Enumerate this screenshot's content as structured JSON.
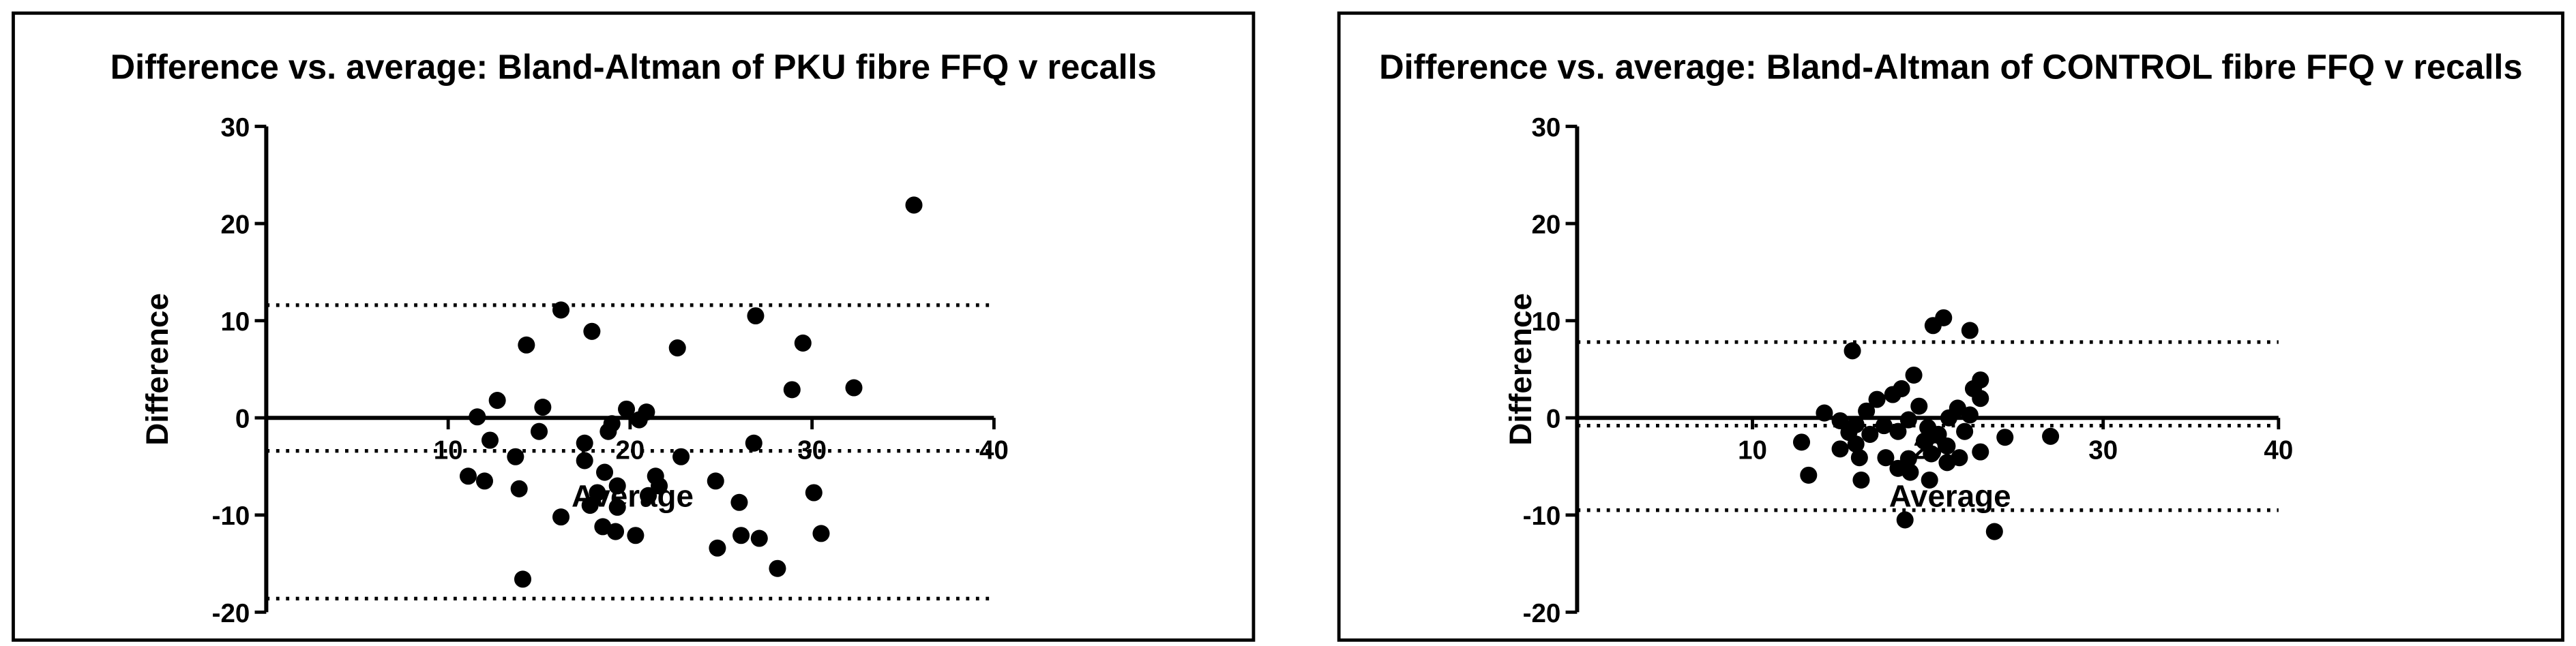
{
  "chart_data": [
    {
      "type": "scatter",
      "title": "Difference vs. average: Bland-Altman of PKU fibre FFQ v recalls",
      "x_label": "Average",
      "y_label": "Difference",
      "color": "#000000",
      "xlim": [
        0,
        40
      ],
      "xticks": [
        10,
        20,
        30,
        40
      ],
      "ylim": [
        -20,
        30
      ],
      "yticks": [
        -20,
        -10,
        0,
        10,
        20,
        30
      ],
      "hlines": [
        11.6,
        -3.4,
        -18.6
      ],
      "x": [
        35.6,
        16.2,
        26.9,
        17.9,
        14.3,
        29.5,
        22.6,
        28.9,
        32.3,
        12.7,
        15.2,
        11.6,
        19.8,
        20.9,
        20.5,
        19.0,
        18.8,
        15.0,
        12.3,
        26.8,
        17.5,
        17.5,
        13.7,
        22.8,
        21.4,
        18.6,
        21.6,
        19.3,
        24.7,
        11.1,
        12.0,
        18.2,
        13.9,
        21.0,
        17.8,
        19.3,
        26.0,
        30.1,
        16.2,
        18.5,
        19.2,
        20.3,
        26.1,
        27.1,
        30.5,
        24.8,
        28.1,
        14.1
      ],
      "values": [
        21.9,
        11.1,
        10.5,
        8.9,
        7.5,
        7.7,
        7.2,
        2.9,
        3.1,
        1.8,
        1.1,
        0.1,
        0.9,
        0.6,
        -0.2,
        -0.6,
        -1.4,
        -1.4,
        -2.3,
        -2.6,
        -2.6,
        -4.4,
        -4.0,
        -4.0,
        -6.0,
        -5.6,
        -7.0,
        -7.0,
        -6.5,
        -6.0,
        -6.5,
        -7.7,
        -7.3,
        -8.0,
        -9.0,
        -9.2,
        -8.7,
        -7.7,
        -10.2,
        -11.2,
        -11.7,
        -12.1,
        -12.1,
        -12.4,
        -11.9,
        -13.4,
        -15.5,
        -16.6
      ]
    },
    {
      "type": "scatter",
      "title": "Difference vs. average: Bland-Altman of CONTROL fibre FFQ v recalls",
      "x_label": "Average",
      "y_label": "Difference",
      "color": "#000000",
      "xlim": [
        0,
        40
      ],
      "xticks": [
        10,
        20,
        30,
        40
      ],
      "ylim": [
        -20,
        30
      ],
      "yticks": [
        -20,
        -10,
        0,
        10,
        20,
        30
      ],
      "hlines": [
        7.8,
        -0.8,
        -9.5
      ],
      "x": [
        20.9,
        20.3,
        22.4,
        15.7,
        19.2,
        23.0,
        22.6,
        18.5,
        18.0,
        23.0,
        17.1,
        19.5,
        21.7,
        14.1,
        16.5,
        22.4,
        21.2,
        15.0,
        18.9,
        15.9,
        17.5,
        20.0,
        22.1,
        15.5,
        18.3,
        20.6,
        16.7,
        24.4,
        27.0,
        19.8,
        12.8,
        15.9,
        21.1,
        15.0,
        23.0,
        20.2,
        17.6,
        16.1,
        21.8,
        18.9,
        21.1,
        18.3,
        19.0,
        16.2,
        13.2,
        20.1,
        18.7,
        23.8
      ],
      "values": [
        10.3,
        9.5,
        9.0,
        6.9,
        4.4,
        3.9,
        3.0,
        3.0,
        2.4,
        2.0,
        1.9,
        1.2,
        1.0,
        0.5,
        0.7,
        0.3,
        0,
        -0.3,
        -0.2,
        -0.7,
        -0.8,
        -1.0,
        -1.4,
        -1.5,
        -1.4,
        -1.7,
        -1.7,
        -2.0,
        -1.9,
        -2.4,
        -2.5,
        -2.7,
        -2.9,
        -3.2,
        -3.5,
        -3.7,
        -4.1,
        -4.1,
        -4.1,
        -4.2,
        -4.6,
        -5.2,
        -5.6,
        -6.4,
        -5.9,
        -6.4,
        -10.5,
        -11.7
      ]
    }
  ]
}
